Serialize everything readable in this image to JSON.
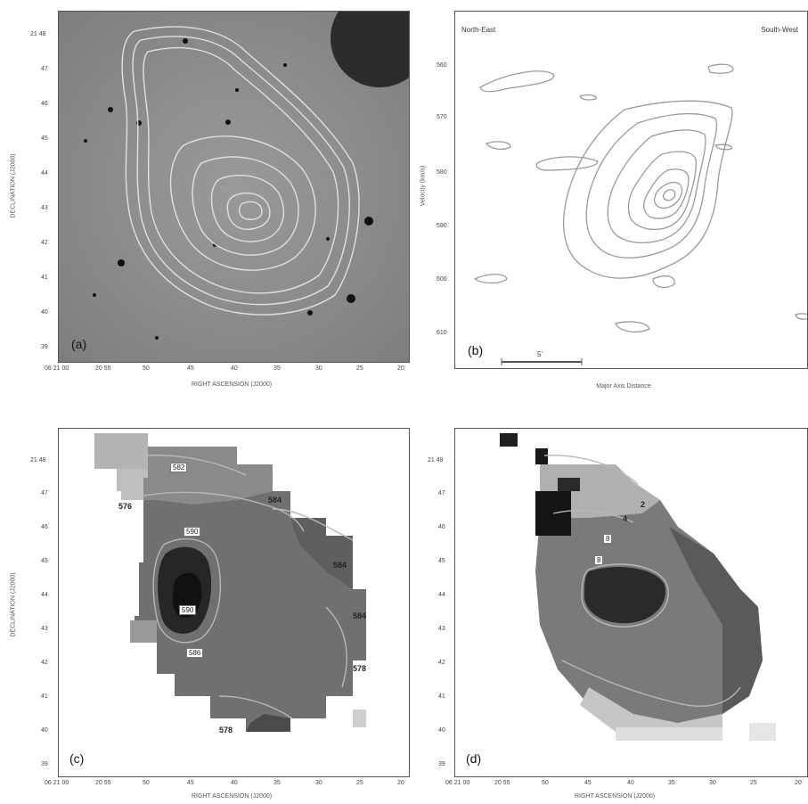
{
  "panels": {
    "a": {
      "label": "(a)",
      "xlabel": "RIGHT ASCENSION (J2000)",
      "ylabel": "DECLINATION (J2000)",
      "x_ticks": [
        "06 21 00",
        "20 55",
        "50",
        "45",
        "40",
        "35",
        "30",
        "25",
        "20"
      ],
      "y_ticks": [
        "21 48",
        "47",
        "46",
        "45",
        "44",
        "43",
        "42",
        "41",
        "40",
        "39"
      ]
    },
    "b": {
      "label": "(b)",
      "xlabel": "Major Axis Distance",
      "ylabel": "Velocity (km/s)",
      "corner_left": "North-East",
      "corner_right": "South-West",
      "y_ticks": [
        "560",
        "570",
        "580",
        "590",
        "600",
        "610"
      ],
      "scale_bar": "5'"
    },
    "c": {
      "label": "(c)",
      "xlabel": "RIGHT ASCENSION (J2000)",
      "ylabel": "DECLINATION (J2000)",
      "x_ticks": [
        "06 21 00",
        "20 55",
        "50",
        "45",
        "40",
        "35",
        "30",
        "25",
        "20"
      ],
      "y_ticks": [
        "21 48",
        "47",
        "46",
        "45",
        "44",
        "43",
        "42",
        "41",
        "40",
        "39"
      ],
      "contour_labels": [
        "576",
        "582",
        "584",
        "590",
        "584",
        "590",
        "578",
        "586",
        "584",
        "578"
      ]
    },
    "d": {
      "label": "(d)",
      "x_ticks": [
        "06 21 00",
        "20 55",
        "50",
        "45",
        "40",
        "35",
        "30",
        "25",
        "20"
      ],
      "y_ticks": [
        "21 48",
        "47",
        "46",
        "45",
        "44",
        "43",
        "42",
        "41",
        "40",
        "39"
      ],
      "xlabel": "RIGHT ASCENSION (J2000)",
      "contour_labels": [
        "2",
        "4",
        "8",
        "8"
      ]
    }
  },
  "colors": {
    "frame": "#555555",
    "contour_light": "#d8d8d8",
    "contour_gray": "#9a9a9a"
  }
}
